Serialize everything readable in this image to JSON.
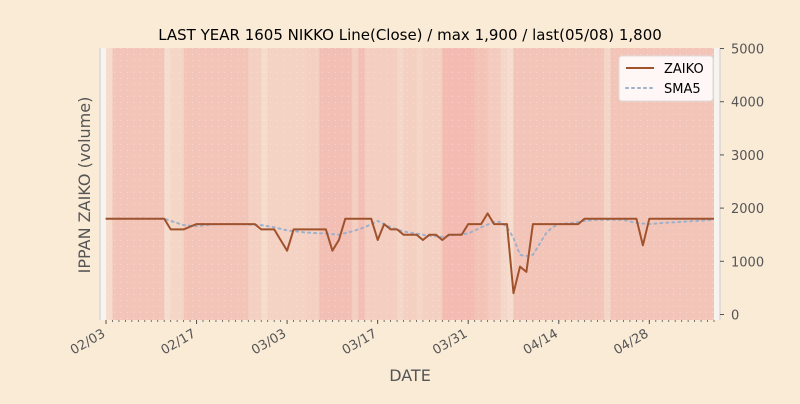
{
  "chart_data": {
    "type": "line",
    "title": "LAST YEAR 1605 NIKKO Line(Close) / max 1,900 / last(05/08) 1,800",
    "xlabel": "DATE",
    "ylabel": "IPPAN ZAIKO (volume)",
    "y_axis_side": "right",
    "ylim": [
      -100,
      5000
    ],
    "yticks": [
      0,
      1000,
      2000,
      3000,
      4000,
      5000
    ],
    "ytick_labels": [
      "0",
      "1000",
      "2000",
      "3000",
      "4000",
      "5000"
    ],
    "x_start": "2025-02-03",
    "x_end": "2025-05-08",
    "xticks": [
      "2025-02-03",
      "2025-02-17",
      "2025-03-03",
      "2025-03-17",
      "2025-03-31",
      "2025-04-14",
      "2025-04-28"
    ],
    "xtick_labels": [
      "02/03",
      "02/17",
      "03/03",
      "03/17",
      "03/31",
      "04/14",
      "04/28"
    ],
    "x_minor_ticks": "daily",
    "legend": {
      "position": "top-right"
    },
    "colors": {
      "background": "#faebd7",
      "plot_area": "#f5dccd",
      "band_strong": "#f2b5ab",
      "zaiko_line": "#a0522d",
      "sma5_line": "#9fb0c8",
      "axis": "#444444",
      "tick_label": "#555555",
      "axis_label": "#555555"
    },
    "series": [
      {
        "name": "ZAIKO",
        "style": "solid",
        "x": [
          "2025-02-03",
          "2025-02-12",
          "2025-02-13",
          "2025-02-14",
          "2025-02-15",
          "2025-02-16",
          "2025-02-17",
          "2025-02-18",
          "2025-02-19",
          "2025-02-20",
          "2025-02-21",
          "2025-02-22",
          "2025-02-23",
          "2025-02-24",
          "2025-02-25",
          "2025-02-26",
          "2025-02-27",
          "2025-02-28",
          "2025-03-01",
          "2025-03-02",
          "2025-03-03",
          "2025-03-04",
          "2025-03-05",
          "2025-03-06",
          "2025-03-07",
          "2025-03-08",
          "2025-03-09",
          "2025-03-10",
          "2025-03-11",
          "2025-03-12",
          "2025-03-13",
          "2025-03-14",
          "2025-03-15",
          "2025-03-16",
          "2025-03-17",
          "2025-03-18",
          "2025-03-19",
          "2025-03-20",
          "2025-03-21",
          "2025-03-22",
          "2025-03-23",
          "2025-03-24",
          "2025-03-25",
          "2025-03-26",
          "2025-03-27",
          "2025-03-28",
          "2025-03-29",
          "2025-03-30",
          "2025-03-31",
          "2025-04-01",
          "2025-04-02",
          "2025-04-03",
          "2025-04-04",
          "2025-04-05",
          "2025-04-06",
          "2025-04-07",
          "2025-04-08",
          "2025-04-09",
          "2025-04-10",
          "2025-04-11",
          "2025-04-12",
          "2025-04-13",
          "2025-04-14",
          "2025-04-15",
          "2025-04-16",
          "2025-04-17",
          "2025-04-18",
          "2025-04-19",
          "2025-04-20",
          "2025-04-21",
          "2025-04-22",
          "2025-04-23",
          "2025-04-24",
          "2025-04-25",
          "2025-04-26",
          "2025-04-27",
          "2025-04-28",
          "2025-04-29",
          "2025-04-30",
          "2025-05-08"
        ],
        "values": [
          1800,
          1800,
          1600,
          1600,
          1600,
          1650,
          1700,
          1700,
          1700,
          1700,
          1700,
          1700,
          1700,
          1700,
          1700,
          1700,
          1600,
          1600,
          1600,
          1400,
          1200,
          1600,
          1600,
          1600,
          1600,
          1600,
          1600,
          1200,
          1400,
          1800,
          1800,
          1800,
          1800,
          1800,
          1400,
          1700,
          1600,
          1600,
          1500,
          1500,
          1500,
          1400,
          1500,
          1500,
          1400,
          1500,
          1500,
          1500,
          1700,
          1700,
          1700,
          1900,
          1700,
          1700,
          1700,
          400,
          900,
          800,
          1700,
          1700,
          1700,
          1700,
          1700,
          1700,
          1700,
          1700,
          1800,
          1800,
          1800,
          1800,
          1800,
          1800,
          1800,
          1800,
          1800,
          1300,
          1800,
          1800,
          1800,
          1800
        ]
      },
      {
        "name": "SMA5",
        "style": "dotted",
        "x": [
          "2025-02-03",
          "2025-02-12",
          "2025-02-13",
          "2025-02-14",
          "2025-02-15",
          "2025-02-17",
          "2025-02-20",
          "2025-02-24",
          "2025-02-27",
          "2025-03-01",
          "2025-03-03",
          "2025-03-06",
          "2025-03-09",
          "2025-03-11",
          "2025-03-13",
          "2025-03-15",
          "2025-03-17",
          "2025-03-19",
          "2025-03-21",
          "2025-03-23",
          "2025-03-25",
          "2025-03-27",
          "2025-03-29",
          "2025-03-31",
          "2025-04-02",
          "2025-04-04",
          "2025-04-05",
          "2025-04-06",
          "2025-04-07",
          "2025-04-08",
          "2025-04-09",
          "2025-04-10",
          "2025-04-11",
          "2025-04-12",
          "2025-04-13",
          "2025-04-14",
          "2025-04-16",
          "2025-04-18",
          "2025-04-20",
          "2025-04-22",
          "2025-04-24",
          "2025-04-26",
          "2025-04-28",
          "2025-04-30",
          "2025-05-08"
        ],
        "values": [
          1800,
          1800,
          1760,
          1720,
          1680,
          1660,
          1700,
          1700,
          1680,
          1640,
          1580,
          1540,
          1520,
          1500,
          1560,
          1640,
          1760,
          1640,
          1560,
          1520,
          1480,
          1460,
          1500,
          1520,
          1640,
          1740,
          1740,
          1640,
          1440,
          1120,
          1100,
          1120,
          1320,
          1520,
          1640,
          1700,
          1720,
          1760,
          1780,
          1780,
          1780,
          1720,
          1700,
          1720,
          1780
        ]
      }
    ],
    "background_bands": [
      {
        "from": "2025-02-04",
        "to": "2025-02-12",
        "level": 0.6
      },
      {
        "from": "2025-02-13",
        "to": "2025-02-15",
        "level": 0.15
      },
      {
        "from": "2025-02-15",
        "to": "2025-02-25",
        "level": 0.6
      },
      {
        "from": "2025-02-25",
        "to": "2025-02-27",
        "level": 0.3
      },
      {
        "from": "2025-02-28",
        "to": "2025-03-06",
        "level": 0.25
      },
      {
        "from": "2025-03-06",
        "to": "2025-03-08",
        "level": 0.3
      },
      {
        "from": "2025-03-08",
        "to": "2025-03-13",
        "level": 0.75
      },
      {
        "from": "2025-03-13",
        "to": "2025-03-14",
        "level": 0.35
      },
      {
        "from": "2025-03-14",
        "to": "2025-03-15",
        "level": 0.75
      },
      {
        "from": "2025-03-15",
        "to": "2025-03-20",
        "level": 0.35
      },
      {
        "from": "2025-03-20",
        "to": "2025-03-21",
        "level": 0.1
      },
      {
        "from": "2025-03-21",
        "to": "2025-03-23",
        "level": 0.3
      },
      {
        "from": "2025-03-23",
        "to": "2025-03-24",
        "level": 0.15
      },
      {
        "from": "2025-03-24",
        "to": "2025-03-27",
        "level": 0.3
      },
      {
        "from": "2025-03-27",
        "to": "2025-04-01",
        "level": 0.85
      },
      {
        "from": "2025-04-01",
        "to": "2025-04-03",
        "level": 0.65
      },
      {
        "from": "2025-04-03",
        "to": "2025-04-05",
        "level": 0.4
      },
      {
        "from": "2025-04-05",
        "to": "2025-04-06",
        "level": 0.1
      },
      {
        "from": "2025-04-07",
        "to": "2025-04-21",
        "level": 0.6
      },
      {
        "from": "2025-04-21",
        "to": "2025-04-22",
        "level": 0.15
      },
      {
        "from": "2025-04-22",
        "to": "2025-05-08",
        "level": 0.6
      }
    ]
  }
}
